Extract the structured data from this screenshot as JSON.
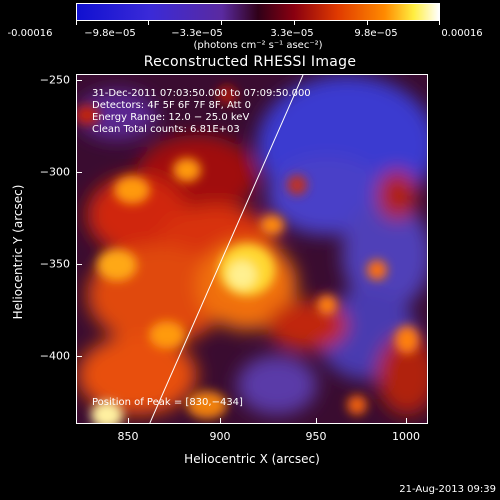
{
  "colorbar": {
    "labels": [
      "-0.00016",
      "−9.8e−05",
      "−3.3e−05",
      "3.3e−05",
      "9.8e−05",
      "0.00016"
    ],
    "units": "(photons cm⁻² s⁻¹ asec⁻²)"
  },
  "title": "Reconstructed RHESSI Image",
  "info": {
    "time": "31‐Dec‐2011 07:03:50.000 to 07:09:50.000",
    "detectors": "Detectors: 4F 5F 6F 7F 8F, Att 0",
    "energy": "Energy Range: 12.0 − 25.0 keV",
    "clean": "Clean     Total counts: 6.81E+03",
    "peak": "Position of Peak = [830,−434]"
  },
  "axes": {
    "xlabel": "Heliocentric X (arcsec)",
    "ylabel": "Heliocentric Y (arcsec)",
    "xticks": [
      "850",
      "900",
      "950",
      "1000"
    ],
    "yticks": [
      "−250",
      "−300",
      "−350",
      "−400"
    ]
  },
  "timestamp": "21‐Aug‐2013 09:39",
  "colors": {
    "limb_line": "#ffffff",
    "background": "#000000"
  }
}
